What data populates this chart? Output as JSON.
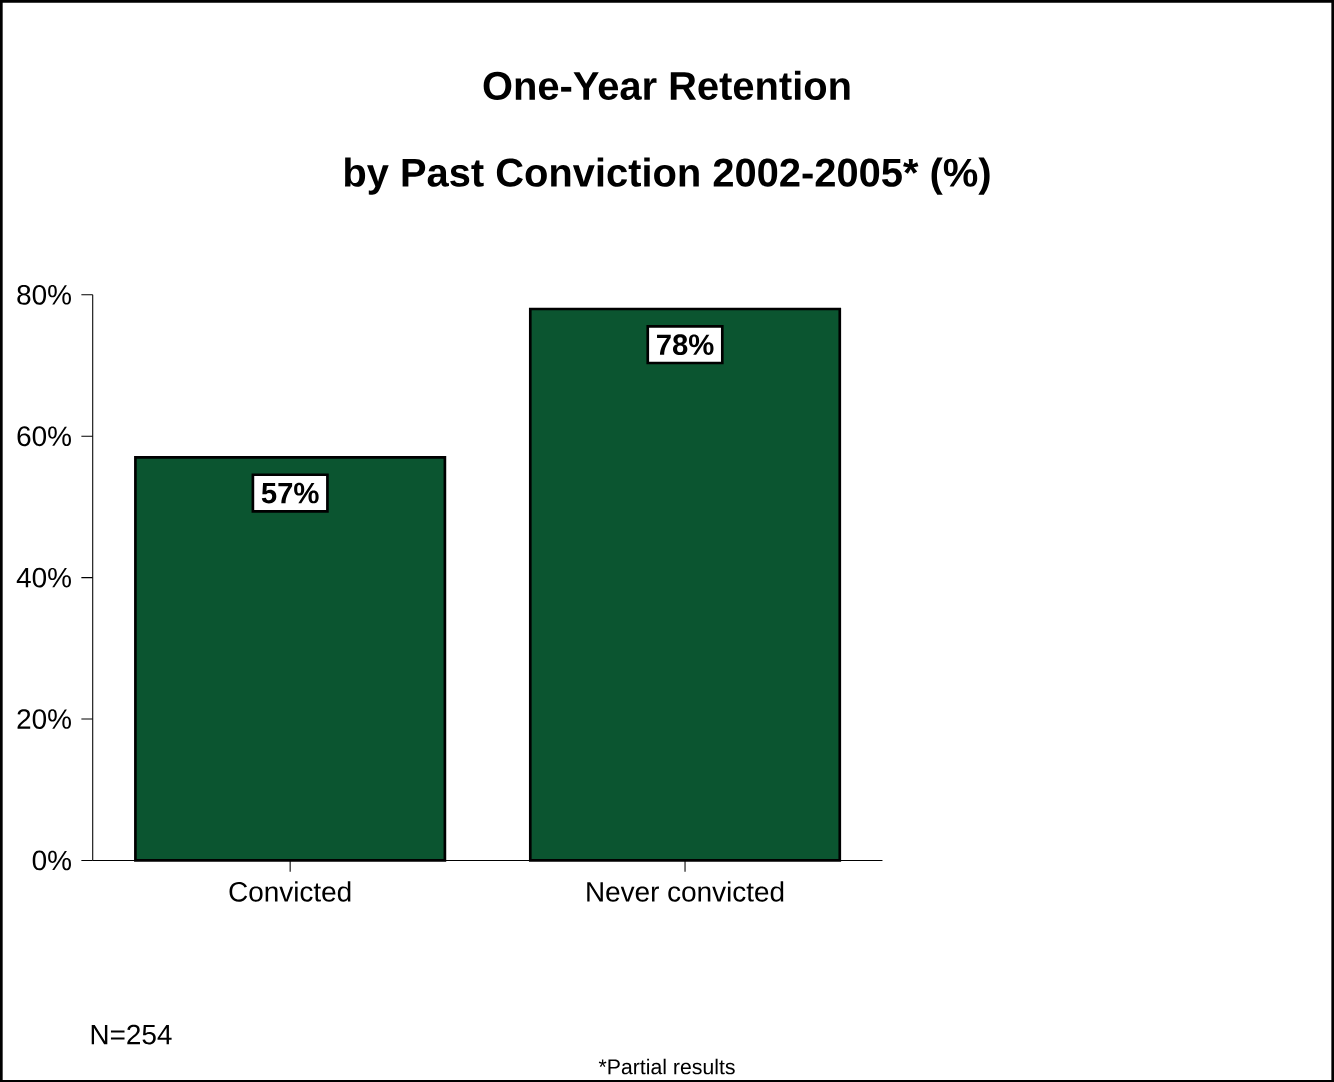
{
  "chart_data": {
    "type": "bar",
    "title": "One-Year Retention",
    "subtitle": "by Past Conviction 2002-2005* (%)",
    "categories": [
      "Convicted",
      "Never convicted"
    ],
    "values": [
      57,
      78
    ],
    "color": "#0b5530",
    "value_labels": [
      "57%",
      "78%"
    ],
    "ylim": [
      0,
      80
    ],
    "yticks": [
      {
        "value": 0,
        "label": "0%"
      },
      {
        "value": 20,
        "label": "20%"
      },
      {
        "value": 40,
        "label": "40%"
      },
      {
        "value": 60,
        "label": "60%"
      },
      {
        "value": 80,
        "label": "80%"
      }
    ],
    "annotations": [
      "N=254",
      "*Partial results"
    ]
  }
}
